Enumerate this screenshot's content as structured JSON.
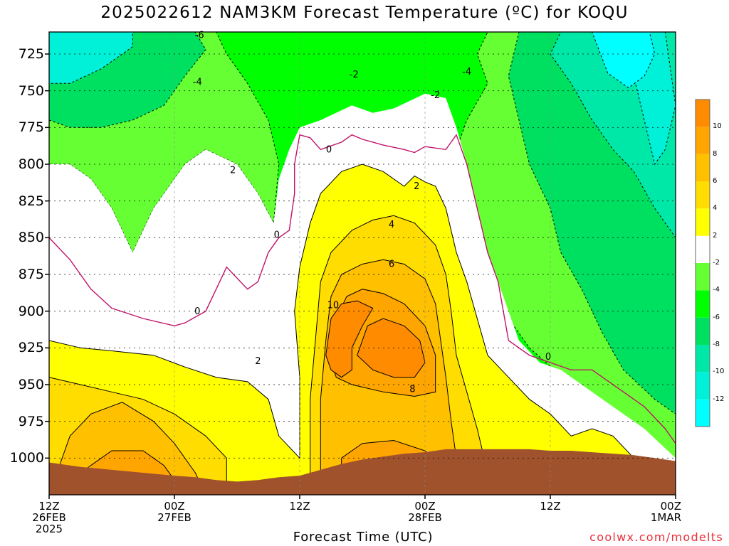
{
  "title": "2025022612 NAM3KM Forecast Temperature (ºC) for KOQU",
  "xlabel": "Forecast Time (UTC)",
  "credit": "coolwx.com/modelts",
  "colors": {
    "terrain": "#a0522d",
    "lt_-12": "#00ffff",
    "-12_-10": "#00f0d8",
    "-10_-8": "#00e8a8",
    "-8_-6": "#00e060",
    "-6_-4": "#00ff00",
    "-4_-2": "#66ff33",
    "-2_2": "#ffffff",
    "2_4": "#ffff00",
    "4_6": "#ffdd00",
    "6_8": "#ffc000",
    "8_10": "#ffa500",
    "gt_10": "#ff8c00",
    "zero_contour": "#c0136b"
  },
  "chart_data": {
    "type": "heatmap",
    "title": "2025022612 NAM3KM Forecast Temperature (ºC) for KOQU",
    "xlabel": "Forecast Time (UTC)",
    "ylabel": "",
    "y_axis": "pressure (hPa), inverted",
    "ylim": [
      1025,
      710
    ],
    "y_ticks": [
      "725",
      "750",
      "775",
      "800",
      "825",
      "850",
      "875",
      "900",
      "925",
      "950",
      "975",
      "1000"
    ],
    "x_ticks": [
      {
        "line1": "12Z",
        "line2": "26FEB",
        "line3": "2025"
      },
      {
        "line1": "00Z",
        "line2": "27FEB",
        "line3": ""
      },
      {
        "line1": "12Z",
        "line2": "",
        "line3": ""
      },
      {
        "line1": "00Z",
        "line2": "28FEB",
        "line3": ""
      },
      {
        "line1": "12Z",
        "line2": "",
        "line3": ""
      },
      {
        "line1": "00Z",
        "line2": "1MAR",
        "line3": ""
      }
    ],
    "x_range_hours": [
      0,
      60
    ],
    "contour_labels": [
      {
        "text": "-6",
        "hour": 14.4,
        "p": 714
      },
      {
        "text": "-4",
        "hour": 14.2,
        "p": 746
      },
      {
        "text": "-2",
        "hour": 29.2,
        "p": 741
      },
      {
        "text": "-4",
        "hour": 40.0,
        "p": 739
      },
      {
        "text": "-2",
        "hour": 37.0,
        "p": 755
      },
      {
        "text": "2",
        "hour": 17.6,
        "p": 806
      },
      {
        "text": "0",
        "hour": 26.8,
        "p": 792
      },
      {
        "text": "0",
        "hour": 21.8,
        "p": 850
      },
      {
        "text": "2",
        "hour": 35.2,
        "p": 817
      },
      {
        "text": "4",
        "hour": 32.8,
        "p": 843
      },
      {
        "text": "6",
        "hour": 32.8,
        "p": 870
      },
      {
        "text": "10",
        "hour": 27.2,
        "p": 898
      },
      {
        "text": "0",
        "hour": 14.2,
        "p": 902
      },
      {
        "text": "2",
        "hour": 20.0,
        "p": 936
      },
      {
        "text": "8",
        "hour": 34.8,
        "p": 955
      },
      {
        "text": "0",
        "hour": 47.8,
        "p": 933
      }
    ],
    "colorbar": {
      "levels": [
        -12,
        -10,
        -8,
        -6,
        -4,
        -2,
        2,
        4,
        6,
        8,
        10
      ],
      "labels": [
        "-12",
        "-10",
        "-8",
        "-6",
        "-4",
        "-2",
        "2",
        "4",
        "6",
        "8",
        "10"
      ]
    },
    "grid": true
  }
}
